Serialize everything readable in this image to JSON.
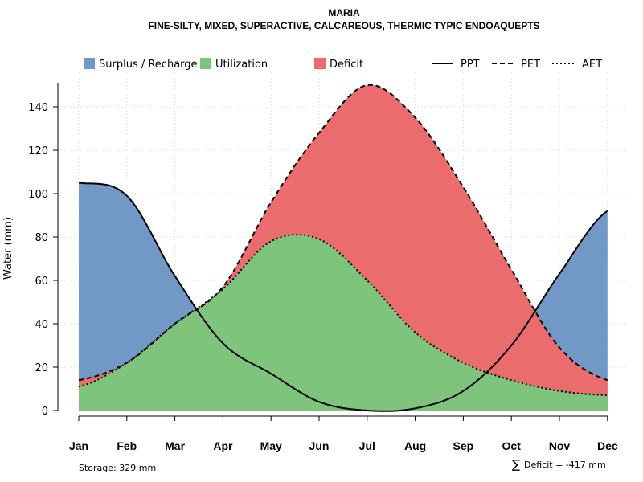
{
  "chart_data": {
    "type": "area",
    "title": "MARIA",
    "subtitle": "FINE-SILTY, MIXED, SUPERACTIVE, CALCAREOUS, THERMIC TYPIC ENDOAQUEPTS",
    "ylabel": "Water (mm)",
    "xlabel": "",
    "categories": [
      "Jan",
      "Feb",
      "Mar",
      "Apr",
      "May",
      "Jun",
      "Jul",
      "Aug",
      "Sep",
      "Oct",
      "Nov",
      "Dec"
    ],
    "ylim": [
      0,
      150
    ],
    "yticks": [
      0,
      20,
      40,
      60,
      80,
      100,
      120,
      140
    ],
    "grid": true,
    "legend_position": "top",
    "legend": {
      "surplus": "Surplus / Recharge",
      "utilization": "Utilization",
      "deficit": "Deficit",
      "ppt": "PPT",
      "pet": "PET",
      "aet": "AET"
    },
    "colors": {
      "surplus": "#7299C6",
      "utilization": "#7FC47C",
      "deficit": "#EB6C6C",
      "line": "#000000",
      "grid": "#d3d3d3"
    },
    "series": [
      {
        "name": "PPT",
        "style": "solid",
        "values": [
          105,
          99,
          62,
          31,
          17,
          4,
          0,
          1,
          9,
          30,
          63,
          92
        ]
      },
      {
        "name": "PET",
        "style": "dashed",
        "values": [
          14,
          22,
          40,
          57,
          96,
          128,
          150,
          135,
          103,
          65,
          29,
          14
        ]
      },
      {
        "name": "AET",
        "style": "dotted",
        "values": [
          11,
          22,
          40,
          56,
          78,
          79,
          60,
          36,
          22,
          14,
          9,
          7
        ]
      }
    ],
    "annotations": {
      "storage": "Storage: 329 mm",
      "deficit_sum_symbol": "∑",
      "deficit_sum": "Deficit = -417 mm"
    }
  }
}
